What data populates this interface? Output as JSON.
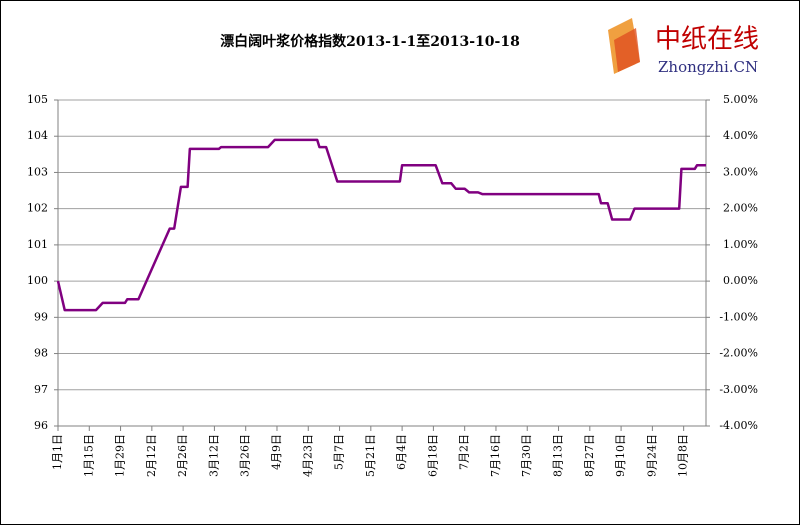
{
  "logo": {
    "name": "中纸在线",
    "url": "Zhongzhi.CN"
  },
  "chart_data": {
    "type": "line",
    "title": "漂白阔叶浆价格指数2013-1-1至2013-10-18",
    "x": [
      1,
      4,
      18,
      21,
      31,
      32,
      37,
      51,
      53,
      56,
      59,
      60,
      73,
      74,
      95,
      98,
      117,
      118,
      121,
      126,
      154,
      155,
      170,
      173,
      177,
      179,
      183,
      185,
      189,
      191,
      243,
      244,
      247,
      249,
      257,
      259,
      279,
      280,
      286,
      287,
      291
    ],
    "series": [
      {
        "name": "漂白阔叶浆价格指数",
        "color": "#800080",
        "values": [
          100.0,
          99.2,
          99.2,
          99.4,
          99.4,
          99.5,
          99.5,
          101.45,
          101.45,
          102.6,
          102.6,
          103.65,
          103.65,
          103.7,
          103.7,
          103.9,
          103.9,
          103.7,
          103.7,
          102.75,
          102.75,
          103.2,
          103.2,
          102.7,
          102.7,
          102.55,
          102.55,
          102.45,
          102.45,
          102.4,
          102.4,
          102.15,
          102.15,
          101.7,
          101.7,
          102.0,
          102.0,
          103.1,
          103.1,
          103.2,
          103.2
        ]
      }
    ],
    "xlim": [
      1,
      291
    ],
    "xticks": [
      {
        "value": 1,
        "label": "1月1日"
      },
      {
        "value": 15,
        "label": "1月15日"
      },
      {
        "value": 29,
        "label": "1月29日"
      },
      {
        "value": 43,
        "label": "2月12日"
      },
      {
        "value": 57,
        "label": "2月26日"
      },
      {
        "value": 71,
        "label": "3月12日"
      },
      {
        "value": 85,
        "label": "3月26日"
      },
      {
        "value": 99,
        "label": "4月9日"
      },
      {
        "value": 113,
        "label": "4月23日"
      },
      {
        "value": 127,
        "label": "5月7日"
      },
      {
        "value": 141,
        "label": "5月21日"
      },
      {
        "value": 155,
        "label": "6月4日"
      },
      {
        "value": 169,
        "label": "6月18日"
      },
      {
        "value": 183,
        "label": "7月2日"
      },
      {
        "value": 197,
        "label": "7月16日"
      },
      {
        "value": 211,
        "label": "7月30日"
      },
      {
        "value": 225,
        "label": "8月13日"
      },
      {
        "value": 239,
        "label": "8月27日"
      },
      {
        "value": 253,
        "label": "9月10日"
      },
      {
        "value": 267,
        "label": "9月24日"
      },
      {
        "value": 281,
        "label": "10月8日"
      }
    ],
    "ylim": [
      96,
      105
    ],
    "yticks": [
      96,
      97,
      98,
      99,
      100,
      101,
      102,
      103,
      104,
      105
    ],
    "y2lim": [
      -4,
      5
    ],
    "y2ticks": [
      {
        "value": -4,
        "label": "-4.00%"
      },
      {
        "value": -3,
        "label": "-3.00%"
      },
      {
        "value": -2,
        "label": "-2.00%"
      },
      {
        "value": -1,
        "label": "-1.00%"
      },
      {
        "value": 0,
        "label": "0.00%"
      },
      {
        "value": 1,
        "label": "1.00%"
      },
      {
        "value": 2,
        "label": "2.00%"
      },
      {
        "value": 3,
        "label": "3.00%"
      },
      {
        "value": 4,
        "label": "4.00%"
      },
      {
        "value": 5,
        "label": "5.00%"
      }
    ],
    "grid": true
  }
}
